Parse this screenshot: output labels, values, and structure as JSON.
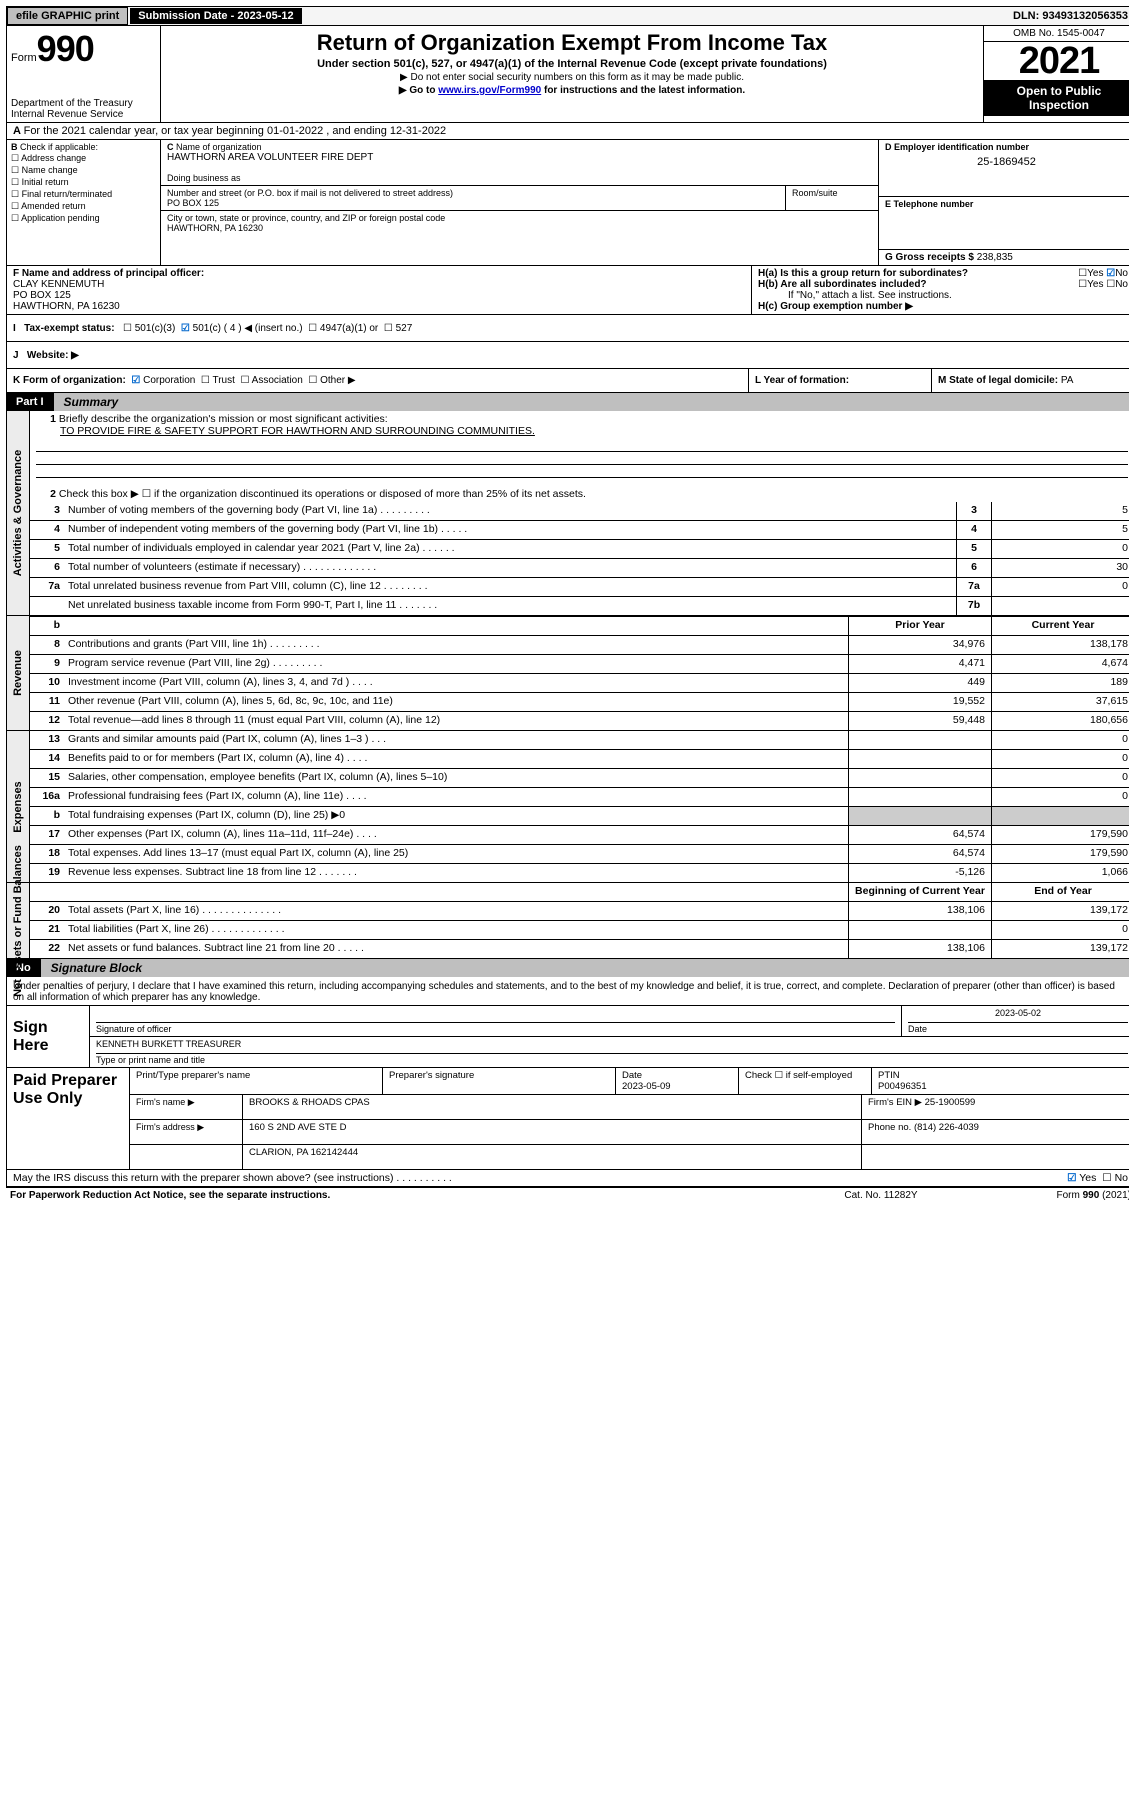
{
  "topbar": {
    "efile": "efile GRAPHIC print",
    "subdate_label": "Submission Date - ",
    "subdate": "2023-05-12",
    "dln_label": "DLN: ",
    "dln": "93493132056353"
  },
  "header": {
    "form_prefix": "Form",
    "form_no": "990",
    "dept": "Department of the Treasury",
    "irs": "Internal Revenue Service",
    "title": "Return of Organization Exempt From Income Tax",
    "sub1": "Under section 501(c), 527, or 4947(a)(1) of the Internal Revenue Code (except private foundations)",
    "sub2": "▶ Do not enter social security numbers on this form as it may be made public.",
    "sub3a": "▶ Go to ",
    "sub3_link": "www.irs.gov/Form990",
    "sub3b": " for instructions and the latest information.",
    "omb": "OMB No. 1545-0047",
    "year": "2021",
    "open": "Open to Public Inspection"
  },
  "rowA": "For the 2021 calendar year, or tax year beginning 01-01-2022  , and ending 12-31-2022",
  "boxB": {
    "label": "Check if applicable:",
    "opts": [
      "Address change",
      "Name change",
      "Initial return",
      "Final return/terminated",
      "Amended return",
      "Application pending"
    ]
  },
  "boxC": {
    "name_lbl": "Name of organization",
    "name": "HAWTHORN AREA VOLUNTEER FIRE DEPT",
    "dba_lbl": "Doing business as",
    "dba": "",
    "street_lbl": "Number and street (or P.O. box if mail is not delivered to street address)",
    "street": "PO BOX 125",
    "room_lbl": "Room/suite",
    "city_lbl": "City or town, state or province, country, and ZIP or foreign postal code",
    "city": "HAWTHORN, PA  16230"
  },
  "boxD": {
    "lbl": "D Employer identification number",
    "val": "25-1869452"
  },
  "boxE": {
    "lbl": "E Telephone number",
    "val": ""
  },
  "boxG": {
    "lbl": "G Gross receipts $ ",
    "val": "238,835"
  },
  "boxF": {
    "lbl": "F  Name and address of principal officer:",
    "name": "CLAY KENNEMUTH",
    "addr1": "PO BOX 125",
    "addr2": "HAWTHORN, PA  16230"
  },
  "boxH": {
    "ha": "H(a)  Is this a group return for subordinates?",
    "hb": "H(b)  Are all subordinates included?",
    "hb_note": "If \"No,\" attach a list. See instructions.",
    "hc": "H(c)  Group exemption number ▶",
    "yes": "Yes",
    "no": "No"
  },
  "rowI": {
    "lbl": "Tax-exempt status:",
    "o1": "501(c)(3)",
    "o2": "501(c) ( 4 ) ◀ (insert no.)",
    "o3": "4947(a)(1) or",
    "o4": "527"
  },
  "rowJ": {
    "lbl": "Website: ▶",
    "val": ""
  },
  "rowK": {
    "lbl": "K Form of organization:",
    "o1": "Corporation",
    "o2": "Trust",
    "o3": "Association",
    "o4": "Other ▶"
  },
  "rowL": {
    "lbl": "L Year of formation:",
    "val": ""
  },
  "rowM": {
    "lbl": "M State of legal domicile: ",
    "val": "PA"
  },
  "part1": {
    "no": "Part I",
    "title": "Summary",
    "tabs": [
      "Activities & Governance",
      "Revenue",
      "Expenses",
      "Net Assets or Fund Balances"
    ],
    "l1": "Briefly describe the organization's mission or most significant activities:",
    "mission": "TO PROVIDE FIRE & SAFETY SUPPORT FOR HAWTHORN AND SURROUNDING COMMUNITIES.",
    "l2": "Check this box ▶ ☐  if the organization discontinued its operations or disposed of more than 25% of its net assets.",
    "lines_gov": [
      {
        "n": "3",
        "t": "Number of voting members of the governing body (Part VI, line 1a)  .   .   .   .   .   .   .   .   .",
        "box": "3",
        "v": "5"
      },
      {
        "n": "4",
        "t": "Number of independent voting members of the governing body (Part VI, line 1b)  .   .   .   .   .",
        "box": "4",
        "v": "5"
      },
      {
        "n": "5",
        "t": "Total number of individuals employed in calendar year 2021 (Part V, line 2a)  .   .   .   .   .   .",
        "box": "5",
        "v": "0"
      },
      {
        "n": "6",
        "t": "Total number of volunteers (estimate if necessary)  .   .   .   .   .   .   .   .   .   .   .   .   .",
        "box": "6",
        "v": "30"
      },
      {
        "n": "7a",
        "t": "Total unrelated business revenue from Part VIII, column (C), line 12  .   .   .   .   .   .   .   .",
        "box": "7a",
        "v": "0"
      },
      {
        "n": "",
        "t": "Net unrelated business taxable income from Form 990-T, Part I, line 11  .   .   .   .   .   .   .",
        "box": "7b",
        "v": ""
      }
    ],
    "hdr_prior": "Prior Year",
    "hdr_curr": "Current Year",
    "lines_rev": [
      {
        "n": "8",
        "t": "Contributions and grants (Part VIII, line 1h)  .   .   .   .   .   .   .   .   .",
        "p": "34,976",
        "c": "138,178"
      },
      {
        "n": "9",
        "t": "Program service revenue (Part VIII, line 2g)  .   .   .   .   .   .   .   .   .",
        "p": "4,471",
        "c": "4,674"
      },
      {
        "n": "10",
        "t": "Investment income (Part VIII, column (A), lines 3, 4, and 7d )  .   .   .   .",
        "p": "449",
        "c": "189"
      },
      {
        "n": "11",
        "t": "Other revenue (Part VIII, column (A), lines 5, 6d, 8c, 9c, 10c, and 11e)",
        "p": "19,552",
        "c": "37,615"
      },
      {
        "n": "12",
        "t": "Total revenue—add lines 8 through 11 (must equal Part VIII, column (A), line 12)",
        "p": "59,448",
        "c": "180,656"
      }
    ],
    "lines_exp": [
      {
        "n": "13",
        "t": "Grants and similar amounts paid (Part IX, column (A), lines 1–3 )  .   .   .",
        "p": "",
        "c": "0"
      },
      {
        "n": "14",
        "t": "Benefits paid to or for members (Part IX, column (A), line 4)  .   .   .   .",
        "p": "",
        "c": "0"
      },
      {
        "n": "15",
        "t": "Salaries, other compensation, employee benefits (Part IX, column (A), lines 5–10)",
        "p": "",
        "c": "0"
      },
      {
        "n": "16a",
        "t": "Professional fundraising fees (Part IX, column (A), line 11e)  .   .   .   .",
        "p": "",
        "c": "0"
      },
      {
        "n": "b",
        "t": "Total fundraising expenses (Part IX, column (D), line 25) ▶0",
        "p": "__SHADE__",
        "c": "__SHADE__"
      },
      {
        "n": "17",
        "t": "Other expenses (Part IX, column (A), lines 11a–11d, 11f–24e)  .   .   .   .",
        "p": "64,574",
        "c": "179,590"
      },
      {
        "n": "18",
        "t": "Total expenses. Add lines 13–17 (must equal Part IX, column (A), line 25)",
        "p": "64,574",
        "c": "179,590"
      },
      {
        "n": "19",
        "t": "Revenue less expenses. Subtract line 18 from line 12  .   .   .   .   .   .   .",
        "p": "-5,126",
        "c": "1,066"
      }
    ],
    "hdr_beg": "Beginning of Current Year",
    "hdr_end": "End of Year",
    "lines_net": [
      {
        "n": "20",
        "t": "Total assets (Part X, line 16)  .   .   .   .   .   .   .   .   .   .   .   .   .   .",
        "p": "138,106",
        "c": "139,172"
      },
      {
        "n": "21",
        "t": "Total liabilities (Part X, line 26)  .   .   .   .   .   .   .   .   .   .   .   .   .",
        "p": "",
        "c": "0"
      },
      {
        "n": "22",
        "t": "Net assets or fund balances. Subtract line 21 from line 20  .   .   .   .   .",
        "p": "138,106",
        "c": "139,172"
      }
    ]
  },
  "part2": {
    "no": "No",
    "title": "Signature Block",
    "decl": "Under penalties of perjury, I declare that I have examined this return, including accompanying schedules and statements, and to the best of my knowledge and belief, it is true, correct, and complete. Declaration of preparer (other than officer) is based on all information of which preparer has any knowledge.",
    "sign_here": "Sign Here",
    "sig_officer": "Signature of officer",
    "sig_date": "2023-05-02",
    "date_lbl": "Date",
    "officer_name": "KENNETH BURKETT TREASURER",
    "type_name": "Type or print name and title",
    "paid": "Paid Preparer Use Only",
    "prep_name_lbl": "Print/Type preparer's name",
    "prep_sig_lbl": "Preparer's signature",
    "prep_date_lbl": "Date",
    "prep_date": "2023-05-09",
    "check_self": "Check ☐ if self-employed",
    "ptin_lbl": "PTIN",
    "ptin": "P00496351",
    "firm_name_lbl": "Firm's name    ▶ ",
    "firm_name": "BROOKS & RHOADS CPAS",
    "firm_ein_lbl": "Firm's EIN ▶ ",
    "firm_ein": "25-1900599",
    "firm_addr_lbl": "Firm's address ▶ ",
    "firm_addr": "160 S 2ND AVE STE D",
    "firm_city": "CLARION, PA  162142444",
    "phone_lbl": "Phone no. ",
    "phone": "(814) 226-4039",
    "mayirs": "May the IRS discuss this return with the preparer shown above? (see instructions)  .   .   .   .   .   .   .   .   .   .",
    "yes": "Yes"
  },
  "footer": {
    "left": "For Paperwork Reduction Act Notice, see the separate instructions.",
    "mid": "Cat. No. 11282Y",
    "right": "Form 990 (2021)"
  },
  "colors": {
    "link": "#0000cc",
    "check": "#0066cc"
  }
}
